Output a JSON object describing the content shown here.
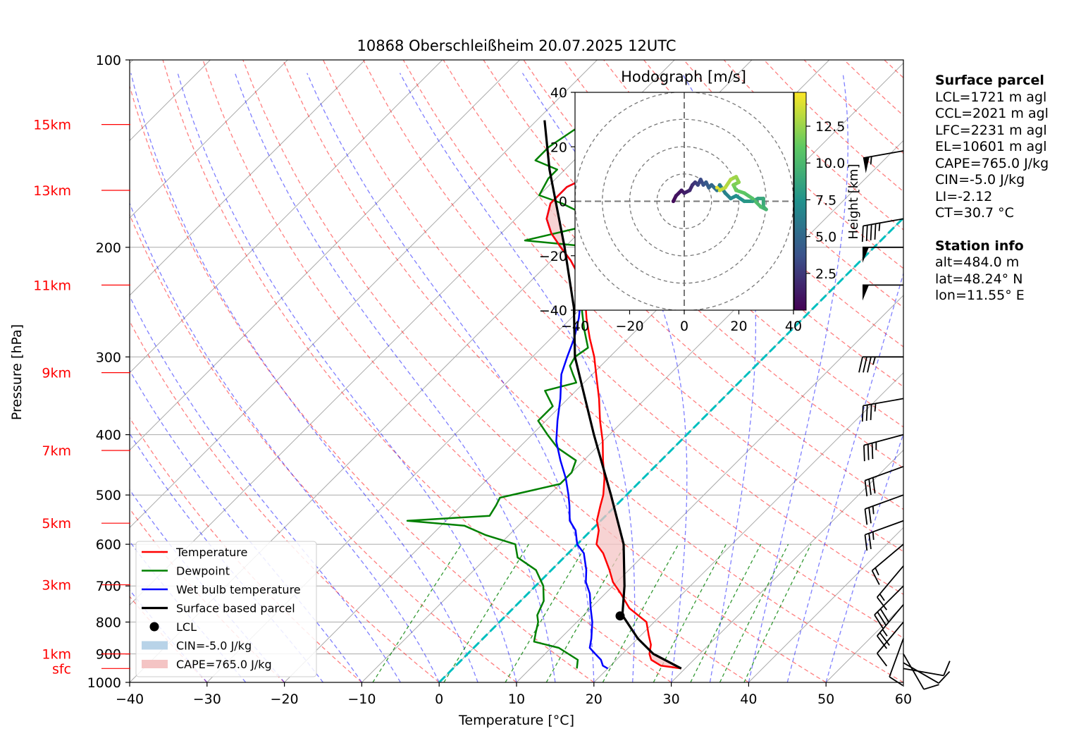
{
  "chart_data": [
    {
      "type": "line",
      "subtype": "skew-T log-p sounding",
      "title": "10868 Oberschleißheim 20.07.2025 12UTC",
      "xlabel": "Temperature [°C]",
      "ylabel": "Pressure [hPa]",
      "xlim": [
        -40,
        60
      ],
      "ylim": [
        1000,
        100
      ],
      "y_scale": "log",
      "x_ticks": [
        -40,
        -30,
        -20,
        -10,
        0,
        10,
        20,
        30,
        40,
        50,
        60
      ],
      "y_ticks": [
        100,
        200,
        300,
        400,
        500,
        600,
        700,
        800,
        900,
        1000
      ],
      "grid": true,
      "height_labels": [
        {
          "label": "15km",
          "p": 127
        },
        {
          "label": "13km",
          "p": 162
        },
        {
          "label": "11km",
          "p": 230
        },
        {
          "label": "9km",
          "p": 318
        },
        {
          "label": "7km",
          "p": 424
        },
        {
          "label": "5km",
          "p": 555
        },
        {
          "label": "3km",
          "p": 697
        },
        {
          "label": "1km",
          "p": 900
        },
        {
          "label": "sfc",
          "p": 950
        }
      ],
      "legend": {
        "placement": "lower-left",
        "entries": [
          {
            "label": "Temperature",
            "color": "#ff0000",
            "kind": "line"
          },
          {
            "label": "Dewpoint",
            "color": "#008000",
            "kind": "line"
          },
          {
            "label": "Wet bulb temperature",
            "color": "#0000ff",
            "kind": "line"
          },
          {
            "label": "Surface based parcel",
            "color": "#000000",
            "kind": "thickline"
          },
          {
            "label": "LCL",
            "color": "#000000",
            "kind": "dot"
          },
          {
            "label": "CIN=-5.0 J/kg",
            "color": "#b8d3e8",
            "kind": "patch"
          },
          {
            "label": "CAPE=765.0 J/kg",
            "color": "#f4c4c4",
            "kind": "patch"
          }
        ]
      },
      "series": [
        {
          "name": "Temperature",
          "color": "#ff0000",
          "points": [
            [
              950,
              29.5
            ],
            [
              940,
              26.5
            ],
            [
              920,
              24.5
            ],
            [
              900,
              23.5
            ],
            [
              870,
              22.5
            ],
            [
              840,
              21
            ],
            [
              800,
              19
            ],
            [
              760,
              15
            ],
            [
              720,
              12
            ],
            [
              690,
              9.5
            ],
            [
              660,
              7.5
            ],
            [
              620,
              4.5
            ],
            [
              600,
              2.5
            ],
            [
              570,
              1
            ],
            [
              550,
              -0.5
            ],
            [
              520,
              -2
            ],
            [
              500,
              -3
            ],
            [
              470,
              -5
            ],
            [
              440,
              -7.5
            ],
            [
              410,
              -10
            ],
            [
              380,
              -13
            ],
            [
              350,
              -16
            ],
            [
              320,
              -19.5
            ],
            [
              300,
              -22
            ],
            [
              280,
              -25
            ],
            [
              260,
              -28
            ],
            [
              240,
              -31
            ],
            [
              220,
              -35
            ],
            [
              210,
              -37.5
            ],
            [
              200,
              -40.5
            ],
            [
              190,
              -43.5
            ],
            [
              180,
              -46
            ],
            [
              170,
              -47.5
            ],
            [
              160,
              -47.5
            ],
            [
              150,
              -45
            ],
            [
              140,
              -43.5
            ],
            [
              135,
              -41
            ],
            [
              130,
              -38
            ],
            [
              125,
              -37.5
            ]
          ]
        },
        {
          "name": "Dewpoint",
          "color": "#008000",
          "points": [
            [
              950,
              16
            ],
            [
              920,
              15
            ],
            [
              880,
              11
            ],
            [
              860,
              7
            ],
            [
              830,
              6
            ],
            [
              800,
              5
            ],
            [
              780,
              4
            ],
            [
              740,
              3
            ],
            [
              700,
              1
            ],
            [
              660,
              -2
            ],
            [
              630,
              -6
            ],
            [
              600,
              -8
            ],
            [
              580,
              -13
            ],
            [
              560,
              -17
            ],
            [
              550,
              -25
            ],
            [
              540,
              -15
            ],
            [
              520,
              -15.5
            ],
            [
              505,
              -16
            ],
            [
              480,
              -10
            ],
            [
              460,
              -10
            ],
            [
              440,
              -11
            ],
            [
              420,
              -15
            ],
            [
              400,
              -18
            ],
            [
              380,
              -21
            ],
            [
              360,
              -21
            ],
            [
              340,
              -24
            ],
            [
              330,
              -21
            ],
            [
              320,
              -22.5
            ],
            [
              310,
              -24
            ],
            [
              300,
              -24.5
            ],
            [
              290,
              -24
            ],
            [
              270,
              -27
            ],
            [
              250,
              -30
            ],
            [
              240,
              -32
            ],
            [
              230,
              -33
            ],
            [
              220,
              -33
            ],
            [
              210,
              -34
            ],
            [
              200,
              -36
            ],
            [
              195,
              -46
            ],
            [
              185,
              -40
            ],
            [
              180,
              -40
            ],
            [
              170,
              -46
            ],
            [
              165,
              -50
            ],
            [
              155,
              -51
            ],
            [
              150,
              -51
            ],
            [
              145,
              -55
            ],
            [
              138,
              -55
            ],
            [
              130,
              -54
            ],
            [
              125,
              -53
            ]
          ]
        },
        {
          "name": "Wet bulb temperature",
          "color": "#0000ff",
          "points": [
            [
              950,
              20
            ],
            [
              940,
              19
            ],
            [
              920,
              18
            ],
            [
              900,
              16.5
            ],
            [
              880,
              15
            ],
            [
              850,
              14
            ],
            [
              800,
              12
            ],
            [
              760,
              10
            ],
            [
              720,
              8
            ],
            [
              690,
              6
            ],
            [
              660,
              4.5
            ],
            [
              620,
              2
            ],
            [
              600,
              0
            ],
            [
              570,
              -2
            ],
            [
              550,
              -4
            ],
            [
              520,
              -6
            ],
            [
              500,
              -7.5
            ],
            [
              470,
              -10
            ],
            [
              440,
              -13
            ],
            [
              410,
              -16
            ],
            [
              380,
              -18.5
            ],
            [
              350,
              -21
            ],
            [
              320,
              -24
            ],
            [
              300,
              -25.5
            ],
            [
              280,
              -27
            ],
            [
              260,
              -29
            ],
            [
              240,
              -31.5
            ],
            [
              220,
              -35
            ],
            [
              210,
              -37.5
            ],
            [
              200,
              -40.5
            ],
            [
              190,
              -43.5
            ],
            [
              180,
              -46
            ],
            [
              170,
              -47.5
            ],
            [
              160,
              -47.5
            ],
            [
              150,
              -45
            ],
            [
              140,
              -43.5
            ],
            [
              135,
              -41
            ],
            [
              130,
              -38
            ],
            [
              125,
              -37.5
            ]
          ]
        },
        {
          "name": "Surface based parcel",
          "color": "#000000",
          "points": [
            [
              950,
              29.5
            ],
            [
              900,
              24
            ],
            [
              850,
              20
            ],
            [
              780,
              15
            ],
            [
              700,
              11.5
            ],
            [
              600,
              6
            ],
            [
              500,
              -2
            ],
            [
              400,
              -12
            ],
            [
              300,
              -24.5
            ],
            [
              250,
              -31
            ],
            [
              200,
              -40
            ],
            [
              150,
              -52
            ],
            [
              125,
              -59
            ]
          ]
        }
      ],
      "lcl": {
        "p": 782,
        "t": 14.8
      }
    },
    {
      "type": "scatter",
      "title": "Hodograph [m/s]",
      "xlim": [
        -40,
        40
      ],
      "ylim": [
        -40,
        40
      ],
      "x_ticks": [
        -40,
        -20,
        0,
        20,
        40
      ],
      "y_ticks": [
        -40,
        -20,
        0,
        20,
        40
      ],
      "rings": [
        10,
        20,
        30,
        40
      ],
      "colorbar": {
        "label": "Height [km]",
        "ticks": [
          2.5,
          5.0,
          7.5,
          10.0,
          12.5
        ]
      },
      "points": [
        [
          -4,
          0,
          0.5
        ],
        [
          -3,
          2,
          0.8
        ],
        [
          -1,
          4,
          1.0
        ],
        [
          0,
          3,
          1.4
        ],
        [
          2,
          4,
          1.8
        ],
        [
          3,
          6,
          2.2
        ],
        [
          4,
          7,
          2.6
        ],
        [
          5,
          6,
          3.0
        ],
        [
          6,
          8,
          3.4
        ],
        [
          7,
          6,
          3.8
        ],
        [
          8,
          7,
          4.2
        ],
        [
          9,
          5,
          4.6
        ],
        [
          10,
          6,
          5.0
        ],
        [
          11,
          5,
          5.4
        ],
        [
          12,
          4,
          5.8
        ],
        [
          13,
          6,
          6.2
        ],
        [
          15,
          3,
          6.6
        ],
        [
          17,
          1,
          7.0
        ],
        [
          19,
          2,
          7.4
        ],
        [
          22,
          0,
          7.8
        ],
        [
          25,
          0,
          8.2
        ],
        [
          27,
          1,
          8.6
        ],
        [
          29,
          1,
          9.0
        ],
        [
          29,
          -2,
          9.4
        ],
        [
          30,
          -3,
          9.8
        ],
        [
          28,
          -2,
          10.2
        ],
        [
          25,
          1,
          10.6
        ],
        [
          22,
          3,
          11.0
        ],
        [
          19,
          4,
          11.4
        ],
        [
          18,
          6,
          11.8
        ],
        [
          20,
          7,
          12.2
        ],
        [
          19,
          9,
          12.6
        ],
        [
          17,
          8,
          13.0
        ],
        [
          15,
          5,
          13.4
        ],
        [
          13,
          4,
          13.8
        ],
        [
          12,
          5,
          14.2
        ]
      ]
    }
  ],
  "info": {
    "surface_parcel_title": "Surface parcel",
    "lcl": "LCL=1721 m agl",
    "ccl": "CCL=2021 m agl",
    "lfc": "LFC=2231 m agl",
    "el": "EL=10601 m agl",
    "cape": "CAPE=765.0 J/kg",
    "cin": "CIN=-5.0 J/kg",
    "li": "LI=-2.12",
    "ct": "CT=30.7 °C",
    "station_title": "Station info",
    "alt": "alt=484.0 m",
    "lat": "lat=48.24° N",
    "lon": "lon=11.55° E"
  },
  "wind_barbs": [
    {
      "p": 140,
      "dir": 260,
      "knots": 55
    },
    {
      "p": 180,
      "dir": 260,
      "knots": 45
    },
    {
      "p": 200,
      "dir": 270,
      "knots": 50
    },
    {
      "p": 230,
      "dir": 270,
      "knots": 50
    },
    {
      "p": 300,
      "dir": 270,
      "knots": 35
    },
    {
      "p": 350,
      "dir": 260,
      "knots": 35
    },
    {
      "p": 400,
      "dir": 255,
      "knots": 35
    },
    {
      "p": 450,
      "dir": 250,
      "knots": 30
    },
    {
      "p": 500,
      "dir": 250,
      "knots": 25
    },
    {
      "p": 550,
      "dir": 250,
      "knots": 25
    },
    {
      "p": 600,
      "dir": 230,
      "knots": 15
    },
    {
      "p": 650,
      "dir": 220,
      "knots": 15
    },
    {
      "p": 700,
      "dir": 225,
      "knots": 30
    },
    {
      "p": 750,
      "dir": 220,
      "knots": 25
    },
    {
      "p": 800,
      "dir": 220,
      "knots": 10
    },
    {
      "p": 850,
      "dir": 200,
      "knots": 10
    },
    {
      "p": 900,
      "dir": 150,
      "knots": 10
    },
    {
      "p": 930,
      "dir": 120,
      "knots": 10
    },
    {
      "p": 950,
      "dir": 100,
      "knots": 10
    }
  ]
}
